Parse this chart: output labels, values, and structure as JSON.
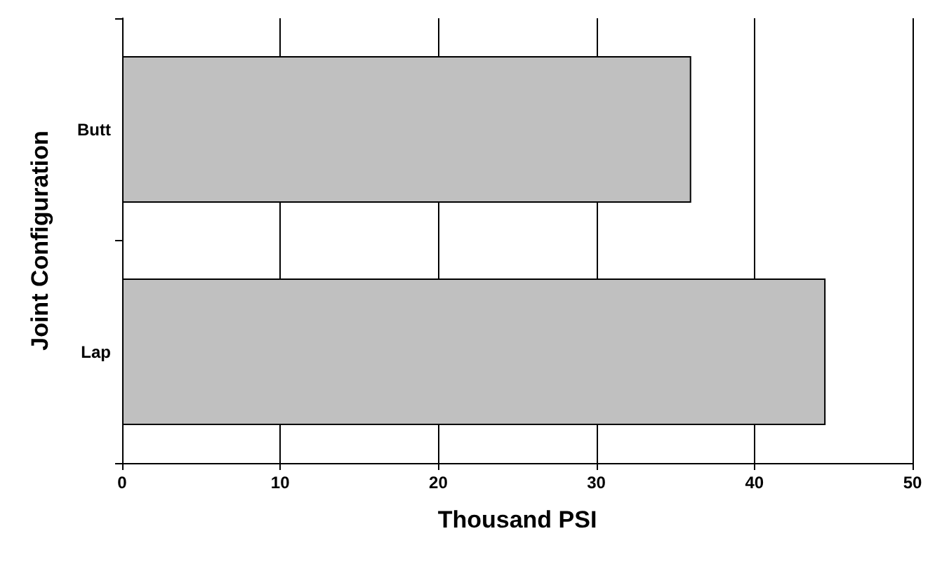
{
  "chart_data": {
    "type": "bar",
    "orientation": "horizontal",
    "xlabel": "Thousand PSI",
    "ylabel": "Joint Configuration",
    "categories": [
      "Butt",
      "Lap"
    ],
    "series": [
      {
        "color": "#c0c0c0",
        "values": [
          36,
          44.5
        ]
      }
    ],
    "xlim": [
      0,
      50
    ],
    "xticks": [
      0,
      10,
      20,
      30,
      40,
      50
    ],
    "grid": "x"
  }
}
